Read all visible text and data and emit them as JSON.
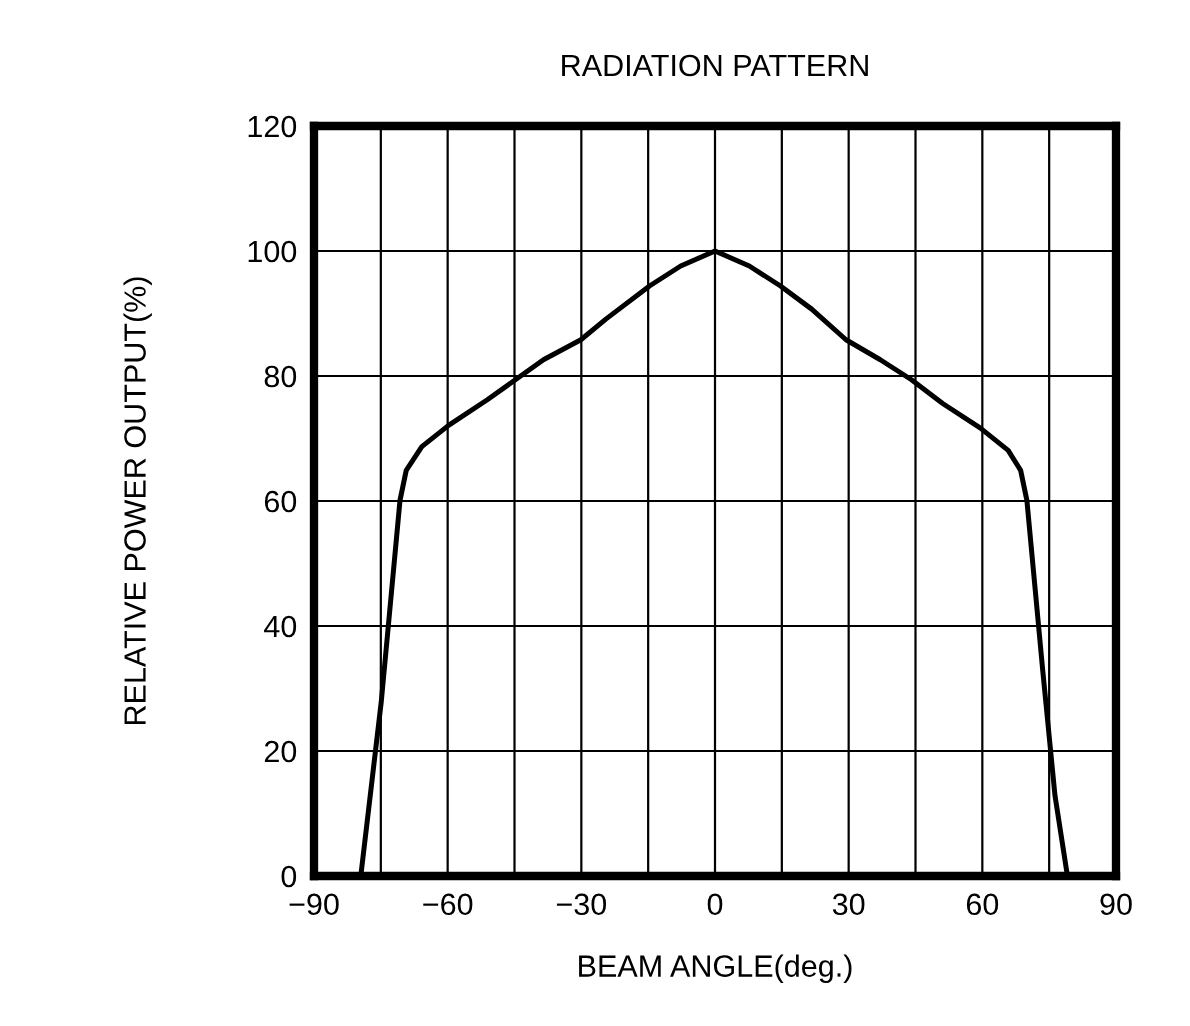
{
  "chart_data": {
    "type": "line",
    "title": "RADIATION PATTERN",
    "xlabel": "BEAM ANGLE(deg.)",
    "ylabel": "RELATIVE POWER OUTPUT(%)",
    "series": [
      {
        "color": "#000000",
        "x": [
          -79.5,
          -74.9,
          -70.7,
          -69.3,
          -65.8,
          -59.8,
          -51.1,
          -44.8,
          -38.5,
          -30.1,
          -24.5,
          -14.7,
          -7.7,
          0,
          7.7,
          14.7,
          21.7,
          29.4,
          37.1,
          44.1,
          51.1,
          59.5,
          65.8,
          68.6,
          70.0,
          73.5,
          76.3,
          79.1
        ],
        "values": [
          0,
          27.9,
          60.1,
          64.9,
          68.7,
          72.1,
          76.2,
          79.4,
          82.6,
          85.8,
          89.1,
          94.4,
          97.6,
          100,
          97.6,
          94.4,
          90.7,
          85.8,
          82.6,
          79.4,
          75.6,
          71.7,
          68.1,
          64.9,
          60.1,
          33.3,
          12.9,
          0
        ]
      }
    ],
    "xlim": [
      -90,
      90
    ],
    "ylim": [
      0,
      120
    ],
    "xticks": [
      -90,
      {
        "value": -75,
        "label": null
      },
      -60,
      {
        "value": -45,
        "label": null
      },
      -30,
      {
        "value": -15,
        "label": null
      },
      0,
      {
        "value": 15,
        "label": null
      },
      30,
      {
        "value": 45,
        "label": null
      },
      60,
      {
        "value": 75,
        "label": null
      },
      90
    ],
    "yticks": [
      0,
      20,
      40,
      60,
      80,
      100,
      120
    ],
    "grid": true,
    "line_style": "solid",
    "marker": "none"
  }
}
